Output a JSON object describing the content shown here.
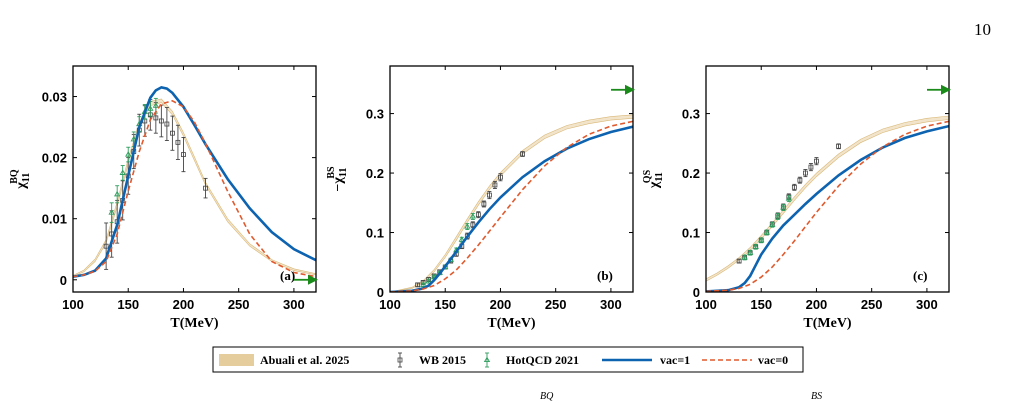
{
  "page": {
    "number": "10"
  },
  "legend": {
    "entries": [
      {
        "label": "Abuali et al.  2025",
        "kind": "band",
        "color": "#e2c48c"
      },
      {
        "label": "WB 2015",
        "kind": "errorbar",
        "color": "#444444"
      },
      {
        "label": "HotQCD 2021",
        "kind": "errorbar-triangle",
        "color": "#2e9e5e"
      },
      {
        "label": "vac=1",
        "kind": "line",
        "color": "#0d63b0"
      },
      {
        "label": "vac=0",
        "kind": "dashed",
        "color": "#e05a2e"
      }
    ]
  },
  "caption_fragments": [
    "BQ",
    "BS"
  ],
  "chart_data": [
    {
      "type": "line",
      "panel_label": "(a)",
      "xlabel": "T(MeV)",
      "ylabel": {
        "prefix": "",
        "main": "χ",
        "sub": "11",
        "sup": "BQ"
      },
      "xlim": [
        100,
        320
      ],
      "ylim": [
        -0.002,
        0.035
      ],
      "xticks": [
        100,
        150,
        200,
        250,
        300
      ],
      "yticks": [
        0,
        0.01,
        0.02,
        0.03
      ],
      "ytick_labels": [
        "0",
        "0.01",
        "0.02",
        "0.03"
      ],
      "arrow_y": 0.0,
      "band": {
        "x": [
          100,
          110,
          120,
          130,
          140,
          150,
          160,
          170,
          180,
          190,
          200,
          210,
          220,
          240,
          260,
          280,
          300,
          320
        ],
        "low": [
          0.0005,
          0.0013,
          0.003,
          0.006,
          0.012,
          0.019,
          0.025,
          0.0285,
          0.029,
          0.027,
          0.0235,
          0.0195,
          0.0155,
          0.0095,
          0.0055,
          0.003,
          0.0015,
          0.0008
        ],
        "high": [
          0.0007,
          0.0016,
          0.0034,
          0.0066,
          0.0128,
          0.0198,
          0.0258,
          0.0292,
          0.0296,
          0.0276,
          0.0241,
          0.0201,
          0.016,
          0.01,
          0.0059,
          0.0033,
          0.0018,
          0.001
        ]
      },
      "series": [
        {
          "name": "vac=1",
          "style": "solid",
          "x": [
            100,
            110,
            120,
            130,
            140,
            150,
            160,
            170,
            175,
            180,
            185,
            190,
            200,
            210,
            220,
            240,
            260,
            280,
            300,
            320
          ],
          "y": [
            0.0005,
            0.0008,
            0.0015,
            0.0035,
            0.009,
            0.017,
            0.025,
            0.0298,
            0.031,
            0.0315,
            0.0313,
            0.0306,
            0.0283,
            0.0253,
            0.0222,
            0.0165,
            0.0117,
            0.0078,
            0.005,
            0.0032
          ]
        },
        {
          "name": "vac=0",
          "style": "dashed",
          "x": [
            100,
            110,
            120,
            130,
            140,
            150,
            160,
            170,
            180,
            190,
            200,
            210,
            220,
            240,
            260,
            280,
            300,
            320
          ],
          "y": [
            0.0005,
            0.0008,
            0.0014,
            0.003,
            0.0075,
            0.0145,
            0.021,
            0.0262,
            0.0288,
            0.0293,
            0.0283,
            0.0258,
            0.0223,
            0.0145,
            0.0075,
            0.003,
            0.0012,
            0.0005
          ]
        }
      ],
      "points": [
        {
          "name": "WB 2015",
          "x": [
            130,
            135,
            140,
            145,
            150,
            155,
            160,
            165,
            170,
            175,
            180,
            185,
            190,
            195,
            200,
            220
          ],
          "y": [
            0.0055,
            0.0075,
            0.0095,
            0.013,
            0.017,
            0.021,
            0.0245,
            0.026,
            0.027,
            0.0265,
            0.026,
            0.0255,
            0.024,
            0.0225,
            0.0205,
            0.015
          ],
          "err": [
            0.0038,
            0.0038,
            0.0035,
            0.0032,
            0.003,
            0.0028,
            0.0026,
            0.0025,
            0.0025,
            0.0025,
            0.0026,
            0.0027,
            0.0028,
            0.0028,
            0.0028,
            0.0016
          ]
        },
        {
          "name": "HotQCD 2021",
          "x": [
            135,
            140,
            145,
            150,
            155,
            160,
            165,
            170,
            175
          ],
          "y": [
            0.011,
            0.014,
            0.0175,
            0.0205,
            0.023,
            0.0255,
            0.0275,
            0.028,
            0.0285
          ],
          "err": [
            0.0016,
            0.0014,
            0.0012,
            0.0012,
            0.0012,
            0.0012,
            0.0012,
            0.0012,
            0.0012
          ]
        }
      ]
    },
    {
      "type": "line",
      "panel_label": "(b)",
      "xlabel": "T(MeV)",
      "ylabel": {
        "prefix": "−",
        "main": "χ",
        "sub": "11",
        "sup": "BS"
      },
      "xlim": [
        100,
        320
      ],
      "ylim": [
        0,
        0.38
      ],
      "xticks": [
        100,
        150,
        200,
        250,
        300
      ],
      "yticks": [
        0,
        0.1,
        0.2,
        0.3
      ],
      "ytick_labels": [
        "0",
        "0.1",
        "0.2",
        "0.3"
      ],
      "arrow_y": 0.34,
      "band": {
        "x": [
          100,
          120,
          130,
          140,
          150,
          160,
          170,
          180,
          190,
          200,
          220,
          240,
          260,
          280,
          300,
          320
        ],
        "low": [
          0.0,
          0.006,
          0.016,
          0.034,
          0.058,
          0.087,
          0.117,
          0.146,
          0.172,
          0.195,
          0.232,
          0.258,
          0.274,
          0.283,
          0.289,
          0.292
        ],
        "high": [
          0.0,
          0.008,
          0.019,
          0.038,
          0.063,
          0.093,
          0.123,
          0.152,
          0.178,
          0.201,
          0.238,
          0.264,
          0.28,
          0.289,
          0.295,
          0.298
        ]
      },
      "series": [
        {
          "name": "vac=1",
          "style": "solid",
          "x": [
            100,
            120,
            130,
            135,
            140,
            145,
            150,
            160,
            170,
            180,
            190,
            200,
            220,
            240,
            260,
            280,
            300,
            320
          ],
          "y": [
            0.0,
            0.002,
            0.006,
            0.011,
            0.02,
            0.031,
            0.043,
            0.068,
            0.093,
            0.117,
            0.139,
            0.159,
            0.193,
            0.22,
            0.241,
            0.257,
            0.269,
            0.278
          ]
        },
        {
          "name": "vac=0",
          "style": "dashed",
          "x": [
            100,
            120,
            130,
            140,
            150,
            160,
            170,
            180,
            190,
            200,
            220,
            240,
            260,
            280,
            300,
            320
          ],
          "y": [
            0.0,
            0.002,
            0.005,
            0.011,
            0.022,
            0.037,
            0.057,
            0.079,
            0.102,
            0.126,
            0.172,
            0.212,
            0.243,
            0.265,
            0.279,
            0.287
          ]
        }
      ],
      "points": [
        {
          "name": "WB 2015",
          "x": [
            125,
            130,
            135,
            140,
            145,
            150,
            155,
            160,
            165,
            170,
            175,
            180,
            185,
            190,
            195,
            200,
            220
          ],
          "y": [
            0.012,
            0.016,
            0.021,
            0.027,
            0.034,
            0.042,
            0.052,
            0.064,
            0.077,
            0.094,
            0.113,
            0.13,
            0.148,
            0.163,
            0.18,
            0.193,
            0.232
          ],
          "err": [
            0.003,
            0.003,
            0.003,
            0.003,
            0.003,
            0.003,
            0.003,
            0.004,
            0.004,
            0.005,
            0.005,
            0.005,
            0.005,
            0.006,
            0.006,
            0.006,
            0.004
          ]
        },
        {
          "name": "HotQCD 2021",
          "x": [
            130,
            135,
            140,
            145,
            150,
            155,
            160,
            165,
            170,
            175
          ],
          "y": [
            0.012,
            0.018,
            0.025,
            0.032,
            0.042,
            0.054,
            0.07,
            0.088,
            0.11,
            0.127
          ],
          "err": [
            0.003,
            0.003,
            0.003,
            0.003,
            0.003,
            0.003,
            0.004,
            0.004,
            0.005,
            0.005
          ]
        }
      ]
    },
    {
      "type": "line",
      "panel_label": "(c)",
      "xlabel": "T(MeV)",
      "ylabel": {
        "prefix": "",
        "main": "χ",
        "sub": "11",
        "sup": "QS"
      },
      "xlim": [
        100,
        320
      ],
      "ylim": [
        0,
        0.38
      ],
      "xticks": [
        100,
        150,
        200,
        250,
        300
      ],
      "yticks": [
        0,
        0.1,
        0.2,
        0.3
      ],
      "ytick_labels": [
        "0",
        "0.1",
        "0.2",
        "0.3"
      ],
      "arrow_y": 0.34,
      "band": {
        "x": [
          100,
          110,
          120,
          130,
          140,
          150,
          160,
          170,
          180,
          190,
          200,
          220,
          240,
          260,
          280,
          300,
          320
        ],
        "low": [
          0.018,
          0.028,
          0.04,
          0.054,
          0.07,
          0.089,
          0.11,
          0.132,
          0.154,
          0.175,
          0.194,
          0.226,
          0.251,
          0.268,
          0.279,
          0.286,
          0.29
        ],
        "high": [
          0.022,
          0.032,
          0.044,
          0.058,
          0.075,
          0.095,
          0.116,
          0.138,
          0.16,
          0.181,
          0.2,
          0.232,
          0.257,
          0.274,
          0.285,
          0.292,
          0.296
        ]
      },
      "series": [
        {
          "name": "vac=1",
          "style": "solid",
          "x": [
            100,
            120,
            130,
            135,
            140,
            145,
            150,
            160,
            170,
            180,
            190,
            200,
            220,
            240,
            260,
            280,
            300,
            320
          ],
          "y": [
            0.001,
            0.003,
            0.008,
            0.015,
            0.027,
            0.045,
            0.063,
            0.09,
            0.112,
            0.13,
            0.148,
            0.165,
            0.196,
            0.222,
            0.243,
            0.259,
            0.27,
            0.279
          ]
        },
        {
          "name": "vac=0",
          "style": "dashed",
          "x": [
            100,
            120,
            130,
            140,
            150,
            160,
            170,
            180,
            190,
            200,
            220,
            240,
            260,
            280,
            300,
            320
          ],
          "y": [
            0.001,
            0.003,
            0.006,
            0.013,
            0.025,
            0.042,
            0.063,
            0.086,
            0.11,
            0.134,
            0.178,
            0.215,
            0.244,
            0.265,
            0.279,
            0.287
          ]
        }
      ],
      "points": [
        {
          "name": "WB 2015",
          "x": [
            130,
            135,
            140,
            145,
            150,
            155,
            160,
            165,
            170,
            175,
            180,
            185,
            190,
            195,
            200,
            220
          ],
          "y": [
            0.052,
            0.058,
            0.066,
            0.076,
            0.087,
            0.1,
            0.114,
            0.128,
            0.143,
            0.16,
            0.176,
            0.188,
            0.2,
            0.21,
            0.22,
            0.245
          ],
          "err": [
            0.003,
            0.003,
            0.003,
            0.003,
            0.004,
            0.004,
            0.004,
            0.005,
            0.005,
            0.005,
            0.005,
            0.005,
            0.006,
            0.006,
            0.006,
            0.004
          ]
        },
        {
          "name": "HotQCD 2021",
          "x": [
            135,
            140,
            145,
            150,
            155,
            160,
            165,
            170,
            175
          ],
          "y": [
            0.058,
            0.066,
            0.076,
            0.087,
            0.1,
            0.113,
            0.127,
            0.142,
            0.157
          ],
          "err": [
            0.004,
            0.004,
            0.004,
            0.004,
            0.004,
            0.004,
            0.005,
            0.005,
            0.005
          ]
        }
      ]
    }
  ]
}
